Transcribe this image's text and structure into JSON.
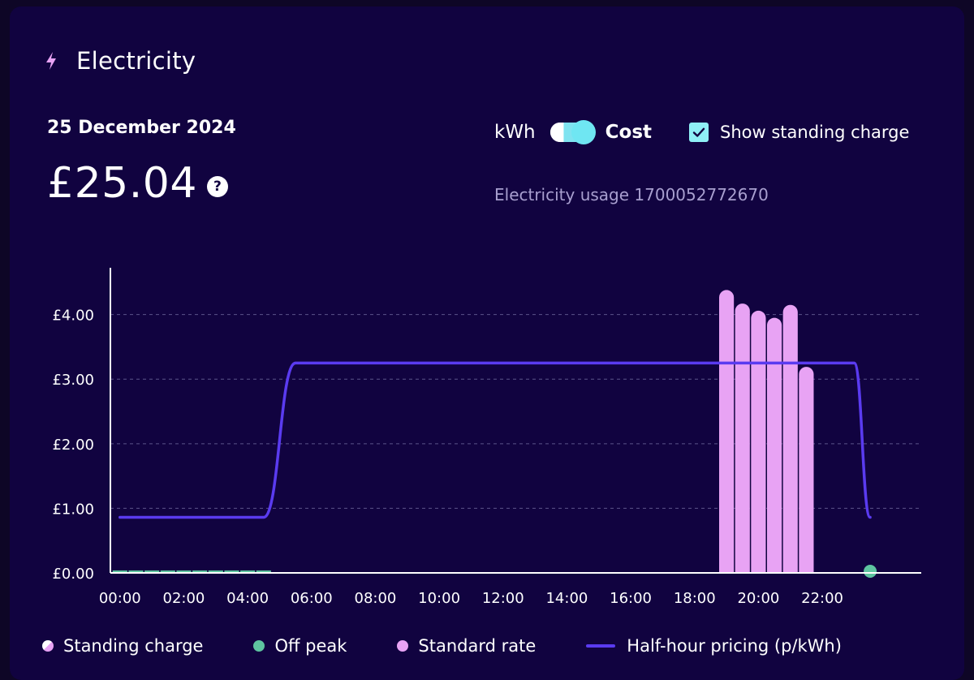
{
  "header": {
    "title": "Electricity",
    "icon": "lightning-icon",
    "icon_color": "#e8a3f4"
  },
  "summary": {
    "date": "25 December 2024",
    "total": "£25.04",
    "help_symbol": "?"
  },
  "controls": {
    "unit_kwh_label": "kWh",
    "unit_cost_label": "Cost",
    "toggle_state": "Cost",
    "show_standing_charge_label": "Show standing charge",
    "show_standing_charge_checked": true,
    "usage_label": "Electricity usage 1700052772670"
  },
  "colors": {
    "background": "#110340",
    "standard_rate": "#e8a3f4",
    "off_peak": "#5ec4a0",
    "pricing_line": "#5a3bf0",
    "axis": "#ffffff",
    "grid": "#5b5489",
    "accent": "#7fe3f0"
  },
  "legend": [
    {
      "label": "Standing charge",
      "type": "dot-standing"
    },
    {
      "label": "Off peak",
      "type": "dot",
      "color": "#5ec4a0"
    },
    {
      "label": "Standard rate",
      "type": "dot",
      "color": "#e8a3f4"
    },
    {
      "label": "Half-hour pricing (p/kWh)",
      "type": "line",
      "color": "#5a3bf0"
    }
  ],
  "chart_data": {
    "type": "bar",
    "title": "",
    "xlabel": "",
    "ylabel": "",
    "ylim": [
      0,
      4.85
    ],
    "y_ticks": [
      {
        "value": 0,
        "label": "£0.00"
      },
      {
        "value": 1,
        "label": "£1.00"
      },
      {
        "value": 2,
        "label": "£2.00"
      },
      {
        "value": 3,
        "label": "£3.00"
      },
      {
        "value": 4,
        "label": "£4.00"
      }
    ],
    "x_range_hours": [
      -0.3,
      25.1
    ],
    "x_ticks": [
      {
        "hour": 0,
        "label": "00:00"
      },
      {
        "hour": 2,
        "label": "02:00"
      },
      {
        "hour": 4,
        "label": "04:00"
      },
      {
        "hour": 6,
        "label": "06:00"
      },
      {
        "hour": 8,
        "label": "08:00"
      },
      {
        "hour": 10,
        "label": "10:00"
      },
      {
        "hour": 12,
        "label": "12:00"
      },
      {
        "hour": 14,
        "label": "14:00"
      },
      {
        "hour": 16,
        "label": "16:00"
      },
      {
        "hour": 18,
        "label": "18:00"
      },
      {
        "hour": 20,
        "label": "20:00"
      },
      {
        "hour": 22,
        "label": "22:00"
      }
    ],
    "grid": true,
    "legend_position": "bottom",
    "series": [
      {
        "name": "Off peak",
        "kind": "bars",
        "color": "#5ec4a0",
        "points": [
          {
            "hour": 0.0,
            "value": 0.01
          },
          {
            "hour": 0.5,
            "value": 0.01
          },
          {
            "hour": 1.0,
            "value": 0.01
          },
          {
            "hour": 1.5,
            "value": 0.01
          },
          {
            "hour": 2.0,
            "value": 0.01
          },
          {
            "hour": 2.5,
            "value": 0.01
          },
          {
            "hour": 3.0,
            "value": 0.01
          },
          {
            "hour": 3.5,
            "value": 0.01
          },
          {
            "hour": 4.0,
            "value": 0.02
          },
          {
            "hour": 4.5,
            "value": 0.02
          },
          {
            "hour": 23.5,
            "value": 0.08
          }
        ]
      },
      {
        "name": "Standard rate",
        "kind": "bars",
        "color": "#e8a3f4",
        "points": [
          {
            "hour": 19.0,
            "value": 4.38
          },
          {
            "hour": 19.5,
            "value": 4.17
          },
          {
            "hour": 20.0,
            "value": 4.06
          },
          {
            "hour": 20.5,
            "value": 3.95
          },
          {
            "hour": 21.0,
            "value": 4.15
          },
          {
            "hour": 21.5,
            "value": 3.19
          }
        ]
      },
      {
        "name": "Half-hour pricing (p/kWh)",
        "kind": "line",
        "color": "#5a3bf0",
        "points": [
          {
            "hour": 0.0,
            "value": 0.86
          },
          {
            "hour": 4.5,
            "value": 0.86
          },
          {
            "hour": 5.5,
            "value": 3.25
          },
          {
            "hour": 23.0,
            "value": 3.25
          },
          {
            "hour": 23.5,
            "value": 0.86
          }
        ]
      }
    ]
  }
}
